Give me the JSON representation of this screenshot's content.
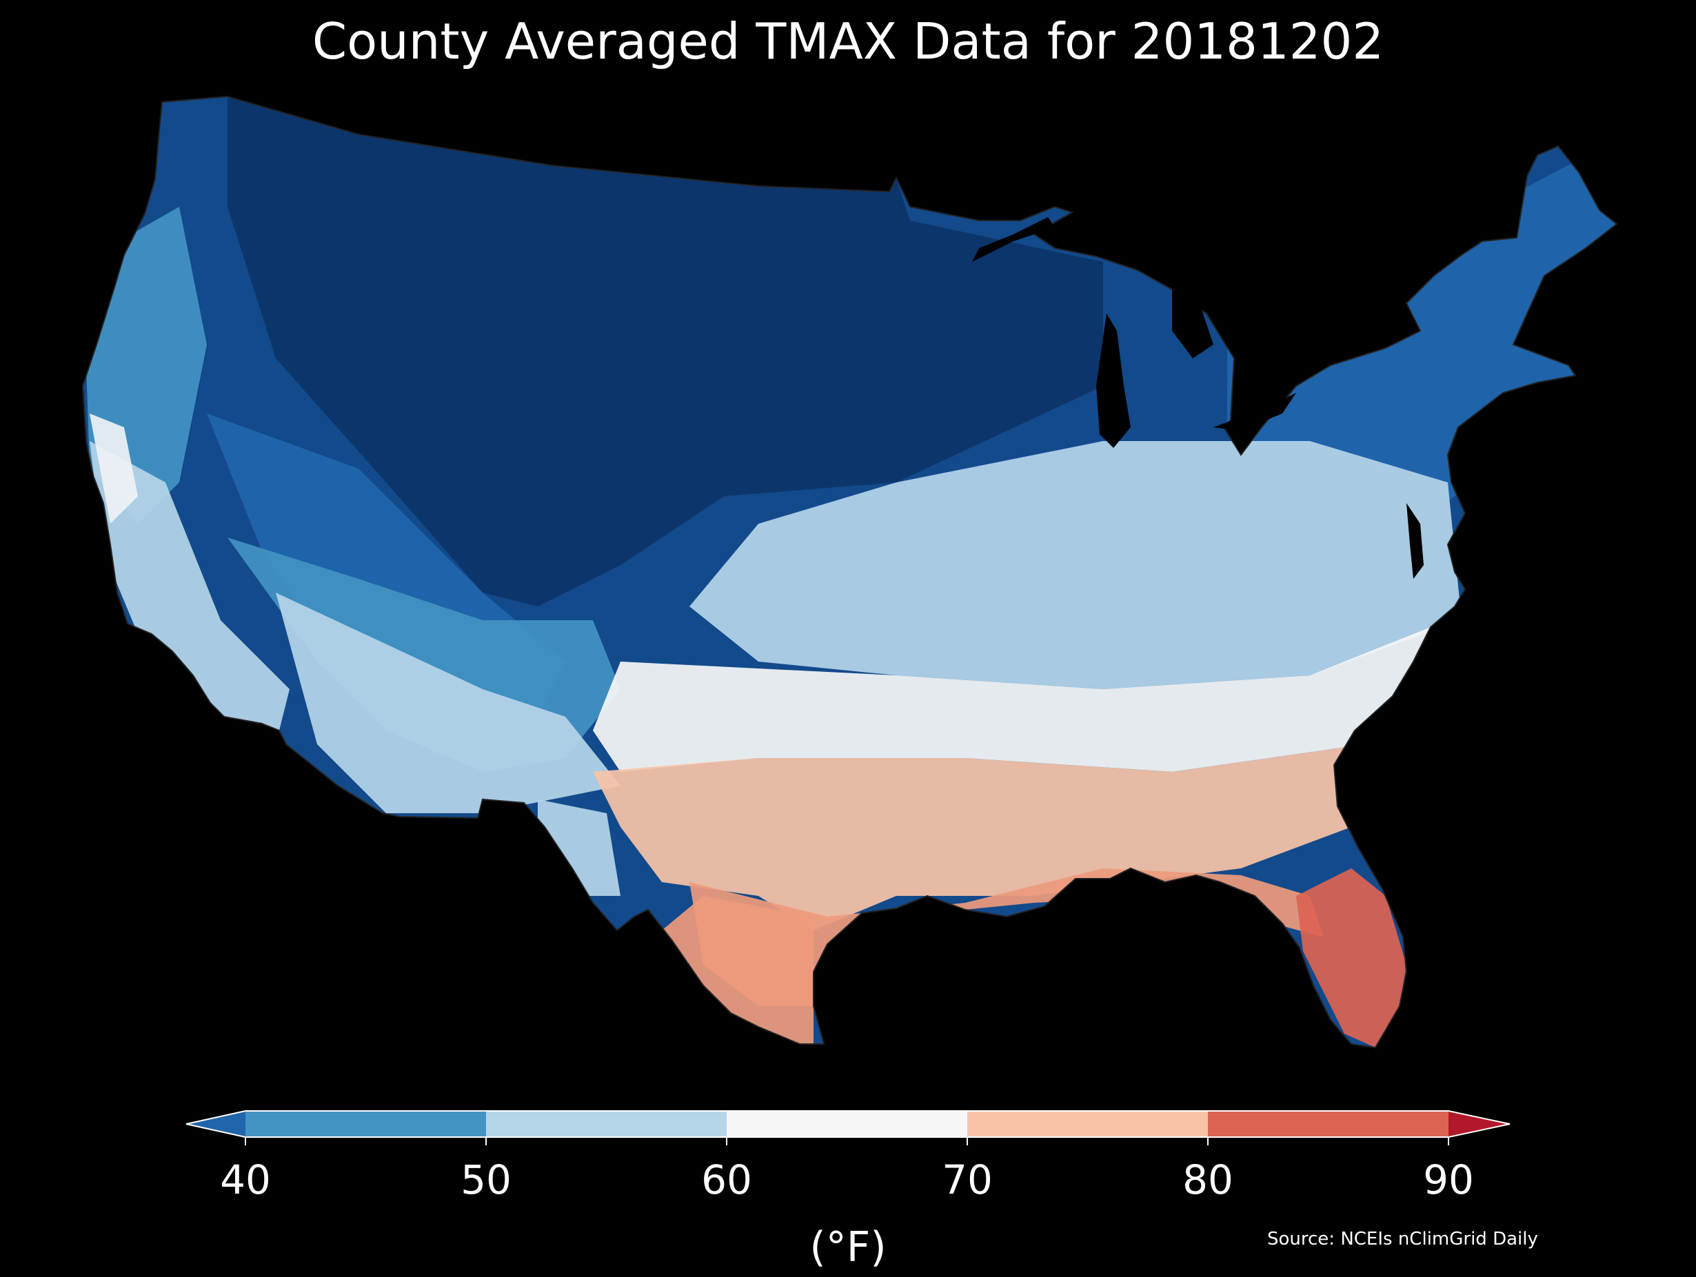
{
  "title": "County Averaged TMAX Data for 20181202",
  "colorbar": {
    "ticks": [
      "40",
      "50",
      "60",
      "70",
      "80",
      "90"
    ],
    "units": "(°F)",
    "bins": [
      {
        "range": "<40",
        "color": "#2166ac"
      },
      {
        "range": "40-50",
        "color": "#4393c3"
      },
      {
        "range": "50-60",
        "color": "#b5d5e9"
      },
      {
        "range": "60-70",
        "color": "#f7f7f7"
      },
      {
        "range": "70-80",
        "color": "#f9c3a7"
      },
      {
        "range": "80-90",
        "color": "#dc6352"
      },
      {
        "range": ">90",
        "color": "#b2182b"
      }
    ]
  },
  "source": "Source: NCEIs nClimGrid Daily",
  "map_colors": {
    "deep_blue": "#0c3468",
    "dark_blue": "#124a8c",
    "mid_blue": "#2166ac",
    "blue": "#4393c3",
    "light_blue": "#b5d5e9",
    "near_white": "#eef2f5",
    "white": "#f7f7f7",
    "peach": "#f9c3a7",
    "salmon": "#ee9a7c",
    "red": "#dc6352"
  }
}
